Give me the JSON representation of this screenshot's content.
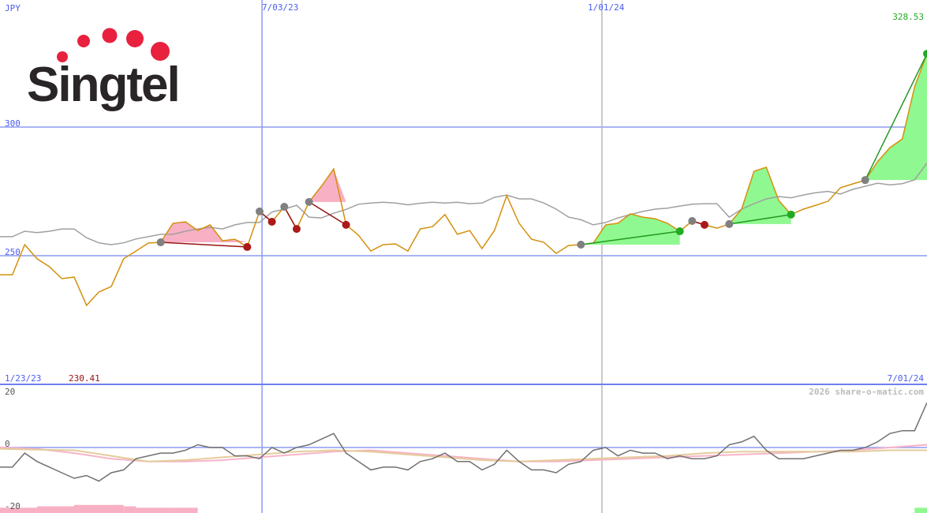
{
  "logo": {
    "text": "Singtel",
    "dot_color": "#e8213f",
    "text_color": "#2a2527"
  },
  "labels": {
    "currency": "JPY",
    "date_1": "7/03/23",
    "date_2": "1/01/24",
    "start_date": "1/23/23",
    "end_date": "7/01/24",
    "max_price": "328.53",
    "min_price": "230.41",
    "watermark": "2026 share-o-matic.com"
  },
  "colors": {
    "price": "#d4900c",
    "average": "#a0a0a0",
    "grid": "#8c9cf0",
    "win_fill": "#90f890",
    "loss_fill": "#f8b0c4",
    "win_line": "#229922",
    "loss_line": "#991111",
    "osc": "#707070",
    "osc_pink": "#f8b4c8",
    "osc_tan": "#e4cc9c"
  },
  "chart_data": [
    {
      "type": "line",
      "ylim": [
        208,
        336
      ],
      "yticks": [
        {
          "value": 300,
          "label": "300"
        },
        {
          "value": 250,
          "label": "250"
        }
      ],
      "xticks": [
        {
          "index": 21.2,
          "label": "7/03/23"
        },
        {
          "index": 48.7,
          "label": "1/01/24"
        }
      ],
      "grid": true,
      "series": [
        {
          "key": "price",
          "values": [
            242.6,
            242.6,
            254.3,
            248.8,
            245.7,
            241.1,
            241.7,
            230.7,
            235.9,
            238.0,
            248.8,
            251.8,
            254.9,
            255.2,
            262.6,
            263.2,
            259.8,
            262.0,
            255.8,
            256.4,
            253.4,
            267.2,
            263.2,
            269.0,
            260.4,
            270.9,
            277.0,
            283.7,
            262.0,
            258.0,
            251.8,
            254.3,
            254.6,
            251.8,
            260.4,
            261.3,
            266.0,
            258.3,
            259.8,
            252.8,
            259.8,
            273.3,
            262.6,
            256.4,
            255.2,
            250.9,
            254.0,
            254.3,
            254.9,
            262.0,
            262.6,
            266.3,
            265.0,
            264.4,
            262.6,
            259.5,
            263.5,
            262.0,
            260.7,
            262.3,
            268.1,
            282.8,
            284.4,
            271.5,
            266.0,
            268.1,
            269.6,
            271.2,
            276.4,
            277.9,
            279.4,
            286.5,
            292.0,
            295.4,
            315.6,
            328.5
          ]
        },
        {
          "key": "average",
          "values": [
            257.4,
            257.4,
            259.5,
            259.0,
            259.5,
            260.4,
            260.4,
            257.0,
            255.0,
            254.3,
            255.0,
            256.5,
            257.4,
            258.3,
            258.3,
            259.5,
            260.4,
            261.0,
            260.4,
            262.0,
            262.9,
            262.9,
            267.0,
            268.1,
            269.6,
            265.0,
            264.7,
            266.5,
            268.0,
            270.0,
            270.5,
            270.8,
            270.5,
            269.8,
            270.4,
            270.8,
            270.5,
            270.8,
            270.2,
            270.5,
            272.7,
            273.6,
            272.1,
            272.1,
            270.5,
            268.1,
            265.0,
            264.0,
            262.0,
            262.9,
            264.7,
            266.0,
            267.2,
            268.1,
            268.5,
            269.3,
            270.0,
            270.2,
            270.2,
            265.0,
            268.1,
            270.2,
            272.1,
            273.0,
            272.5,
            273.6,
            274.5,
            275.0,
            274.0,
            275.8,
            277.0,
            278.2,
            277.5,
            278.0,
            279.5,
            286.0
          ]
        }
      ],
      "trades": [
        {
          "entry": 13,
          "exit": 20,
          "result": "loss"
        },
        {
          "entry": 21,
          "exit": 22,
          "result": "loss"
        },
        {
          "entry": 23,
          "exit": 24,
          "result": "loss"
        },
        {
          "entry": 25,
          "exit": 28,
          "result": "loss"
        },
        {
          "entry": 47,
          "exit": 55,
          "result": "win"
        },
        {
          "entry": 56,
          "exit": 57,
          "result": "loss"
        },
        {
          "entry": 59,
          "exit": 64,
          "result": "win"
        },
        {
          "entry": 70,
          "exit": 75,
          "result": "win"
        }
      ]
    },
    {
      "type": "line",
      "ylim": [
        -22,
        22
      ],
      "yticks": [
        {
          "value": 20,
          "label": "20"
        },
        {
          "value": 0,
          "label": "0"
        },
        {
          "value": -20,
          "label": "-20"
        }
      ],
      "series": [
        {
          "key": "osc",
          "values": [
            -7,
            -7,
            -2,
            -5,
            -7,
            -9,
            -11,
            -10,
            -12,
            -9,
            -8,
            -4,
            -3,
            -2,
            -2,
            -1,
            1,
            0,
            0,
            -3,
            -3,
            -4,
            0,
            -2,
            0,
            1,
            3,
            5,
            -2,
            -5,
            -8,
            -7,
            -7,
            -8,
            -5,
            -4,
            -2,
            -5,
            -5,
            -8,
            -6,
            -1,
            -5,
            -8,
            -8,
            -9,
            -6,
            -5,
            -1,
            0,
            -3,
            -1,
            -2,
            -2,
            -4,
            -3,
            -4,
            -4,
            -3,
            1,
            2,
            4,
            -1,
            -4,
            -4,
            -4,
            -3,
            -2,
            -1,
            -1,
            0,
            2,
            5,
            6,
            6,
            16
          ]
        },
        {
          "key": "osc_pink",
          "values": [
            0,
            -0.5,
            -2,
            -4,
            -5,
            -5,
            -4.5,
            -3.5,
            -2.5,
            -1.5,
            -1,
            -2,
            -3,
            -4,
            -5,
            -5,
            -4.5,
            -4,
            -3.5,
            -3,
            -2.5,
            -2,
            -1.5,
            -1,
            0,
            1
          ]
        },
        {
          "key": "osc_tan",
          "values": [
            -0.5,
            -0.8,
            -1,
            -3,
            -5,
            -4.5,
            -3.5,
            -2.5,
            -1.5,
            -1,
            -1.5,
            -2.5,
            -3.5,
            -4.5,
            -5,
            -4.5,
            -4,
            -3.5,
            -3,
            -2,
            -1.5,
            -1.5,
            -1.5,
            -1.5,
            -1,
            -1
          ]
        }
      ],
      "histogram": [
        {
          "start": 0,
          "end": 3,
          "value": -21.5,
          "color": "loss"
        },
        {
          "start": 3,
          "end": 6,
          "value": -21,
          "color": "loss"
        },
        {
          "start": 6,
          "end": 10,
          "value": -20.5,
          "color": "loss"
        },
        {
          "start": 10,
          "end": 11,
          "value": -21,
          "color": "loss"
        },
        {
          "start": 11,
          "end": 14,
          "value": -21.5,
          "color": "loss"
        },
        {
          "start": 14,
          "end": 16,
          "value": -21.5,
          "color": "loss"
        },
        {
          "start": 74,
          "end": 75,
          "value": -21.5,
          "color": "win"
        }
      ]
    }
  ]
}
